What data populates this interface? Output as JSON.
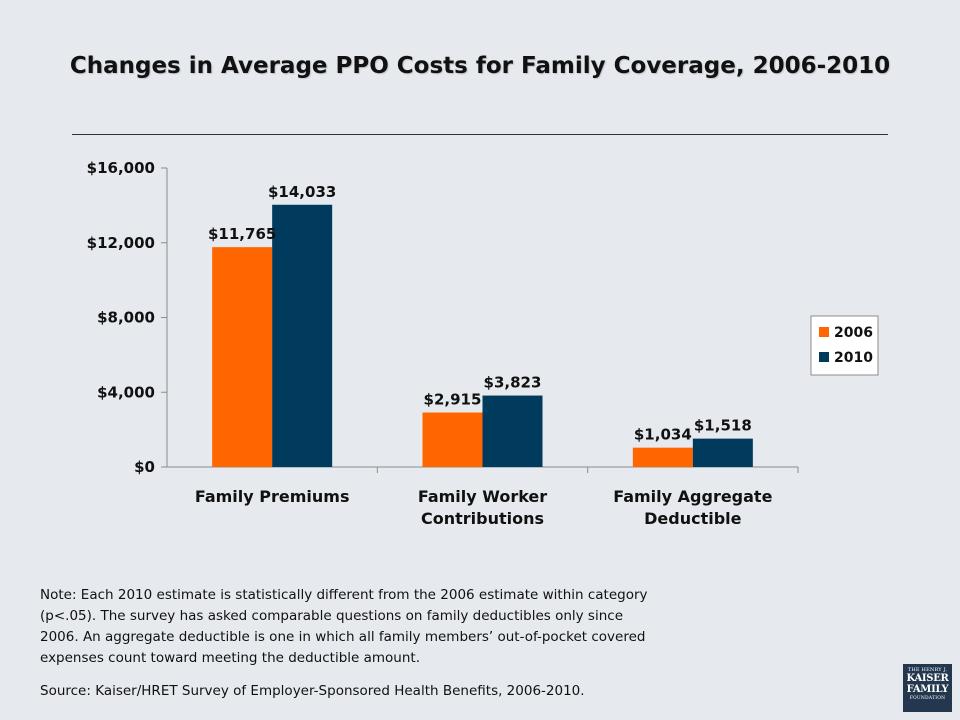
{
  "slide": {
    "title": "Changes in Average PPO Costs for Family Coverage, 2006-2010",
    "note": "Note: Each 2010 estimate is statistically different from the 2006 estimate within category (p<.05). The survey has asked comparable questions on family deductibles only since 2006. An aggregate deductible is one in which all family members’ out-of-pocket covered expenses count toward meeting the deductible amount.",
    "source": "Source: Kaiser/HRET Survey of Employer-Sponsored Health Benefits, 2006-2010.",
    "logo": {
      "line1": "THE HENRY J.",
      "line2": "KAISER",
      "line3": "FAMILY",
      "line4": "FOUNDATION"
    }
  },
  "chart_data": {
    "type": "bar",
    "title": "Changes in Average PPO Costs for Family Coverage, 2006-2010",
    "categories": [
      "Family Premiums",
      "Family Worker Contributions",
      "Family Aggregate Deductible"
    ],
    "series": [
      {
        "name": "2006",
        "values": [
          11765,
          2915,
          1034
        ],
        "labels": [
          "$11,765",
          "$2,915",
          "$1,034"
        ],
        "color": "#ff6600"
      },
      {
        "name": "2010",
        "values": [
          14033,
          3823,
          1518
        ],
        "labels": [
          "$14,033",
          "$3,823",
          "$1,518"
        ],
        "color": "#003a5c"
      }
    ],
    "ylim": [
      0,
      16000
    ],
    "yticks": [
      0,
      4000,
      8000,
      12000,
      16000
    ],
    "ytick_labels": [
      "$0",
      "$4,000",
      "$8,000",
      "$12,000",
      "$16,000"
    ],
    "grid": false,
    "legend_position": "right"
  }
}
